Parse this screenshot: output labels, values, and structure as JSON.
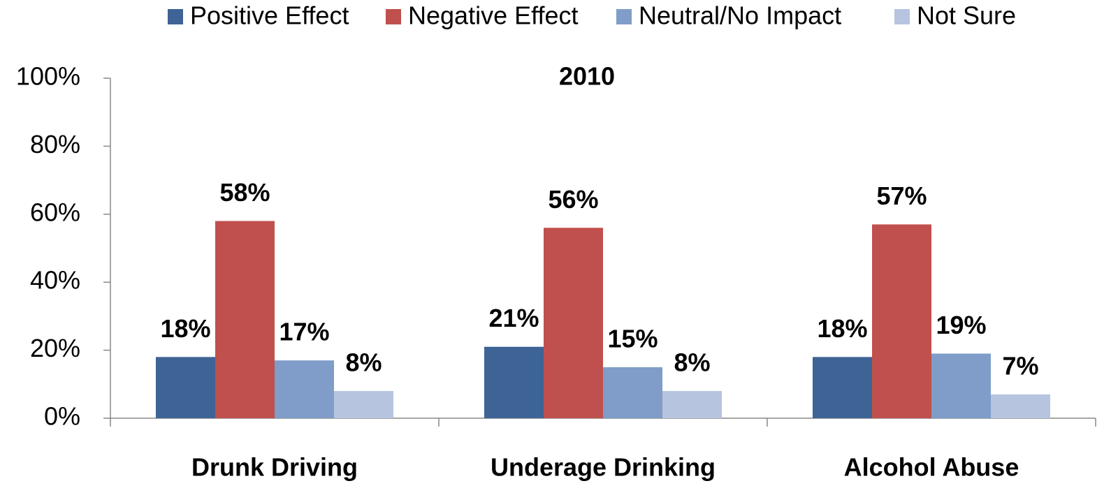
{
  "chart_data": {
    "type": "bar",
    "title": "2010",
    "categories": [
      "Drunk Driving",
      "Underage Drinking",
      "Alcohol Abuse"
    ],
    "series": [
      {
        "name": "Positive Effect",
        "color": "#3e6395",
        "values": [
          18,
          21,
          18
        ],
        "value_labels": [
          "18%",
          "21%",
          "18%"
        ]
      },
      {
        "name": "Negative Effect",
        "color": "#c0504d",
        "values": [
          58,
          56,
          57
        ],
        "value_labels": [
          "58%",
          "56%",
          "57%"
        ]
      },
      {
        "name": "Neutral/No Impact",
        "color": "#7f9dc8",
        "values": [
          17,
          15,
          19
        ],
        "value_labels": [
          "17%",
          "15%",
          "19%"
        ]
      },
      {
        "name": "Not Sure",
        "color": "#b6c4df",
        "values": [
          8,
          8,
          7
        ],
        "value_labels": [
          "8%",
          "8%",
          "7%"
        ]
      }
    ],
    "ylim": [
      0,
      100
    ],
    "yticks": [
      {
        "value": 0,
        "label": "0%"
      },
      {
        "value": 20,
        "label": "20%"
      },
      {
        "value": 40,
        "label": "40%"
      },
      {
        "value": 60,
        "label": "60%"
      },
      {
        "value": 80,
        "label": "80%"
      },
      {
        "value": 100,
        "label": "100%"
      }
    ],
    "legend": "top",
    "grid": false
  }
}
